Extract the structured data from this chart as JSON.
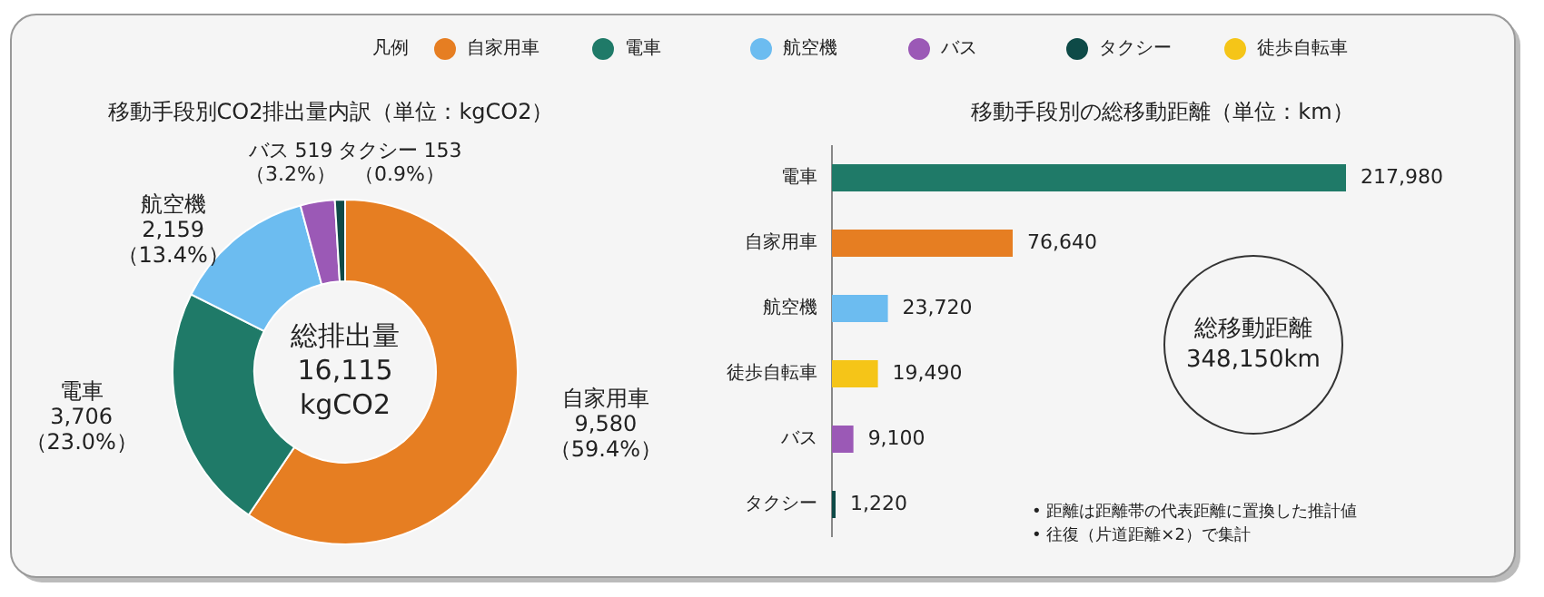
{
  "chart_data": [
    {
      "type": "donut",
      "title": "移動手段別CO2排出量内訳（単位：kgCO2）",
      "categories": [
        "自家用車",
        "電車",
        "航空機",
        "バス",
        "タクシー",
        "徒歩自転車"
      ],
      "values": [
        9580,
        3706,
        2159,
        519,
        153,
        null
      ],
      "colors": [
        "#e67e22",
        "#1f7a68",
        "#6cbcf0",
        "#9b59b6",
        "#0e4a47",
        "#f5c518"
      ],
      "value_labels": [
        "9,580\n（59.4%）",
        "3,706\n（23.0%）",
        "2,159\n（13.4%）",
        "519\n（3.2%）",
        "153\n（0.9%）",
        null
      ],
      "legend": "top",
      "legend_title": "凡例",
      "annotations": [
        "総排出量\n16,115\nkgCO2"
      ]
    },
    {
      "type": "bar",
      "orientation": "horizontal",
      "title": "移動手段別の総移動距離（単位：km）",
      "categories": [
        "電車",
        "自家用車",
        "航空機",
        "徒歩自転車",
        "バス",
        "タクシー"
      ],
      "values": [
        217980,
        76640,
        23720,
        19490,
        9100,
        1220
      ],
      "colors": [
        "#1f7a68",
        "#e67e22",
        "#6cbcf0",
        "#f5c518",
        "#9b59b6",
        "#0e4a47"
      ],
      "value_labels": [
        "217,980",
        "76,640",
        "23,720",
        "19,490",
        "9,100",
        "1,220"
      ],
      "annotations": [
        "総移動距離\n348,150km",
        "•  距離は距離帯の代表距離に置換した推計値",
        "•  往復（片道距離×2）で集計"
      ]
    }
  ]
}
